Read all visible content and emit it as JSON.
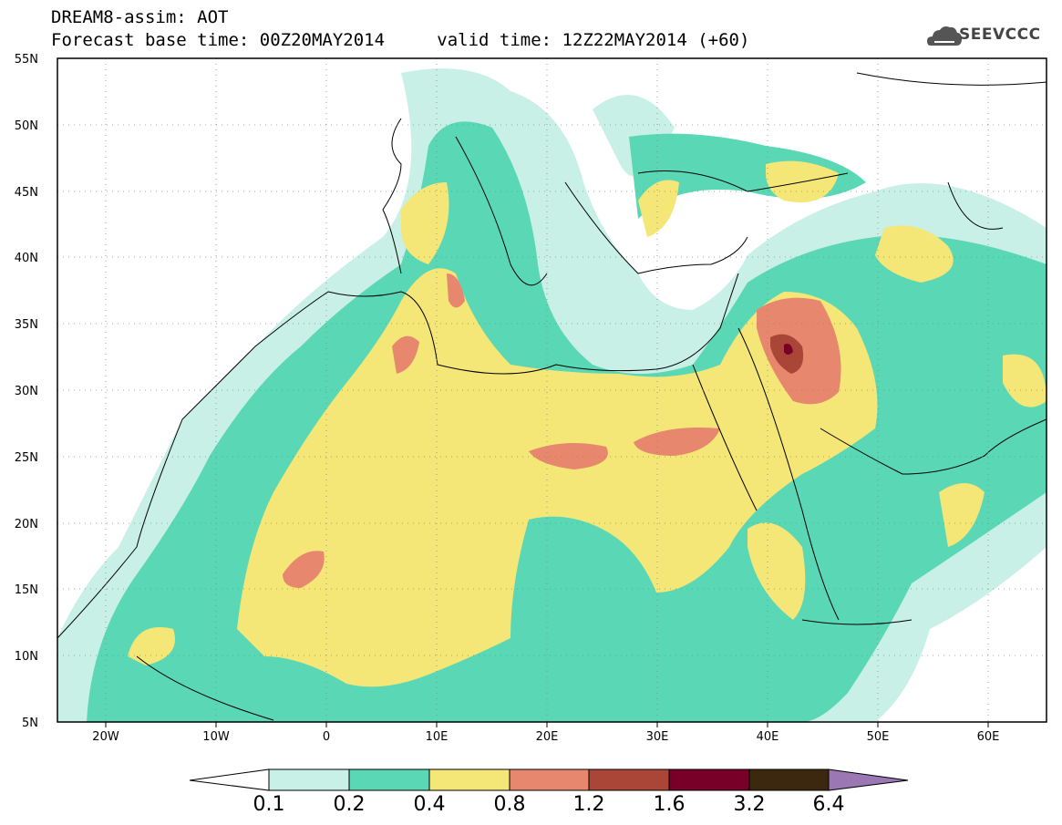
{
  "header": {
    "title": "DREAM8-assim: AOT",
    "base_time_label": "Forecast base time: 00Z20MAY2014",
    "valid_time_label": "valid time: 12Z22MAY2014 (+60)"
  },
  "logo": {
    "text": "SEEVCCC",
    "icon": "cloud-icon"
  },
  "map": {
    "lat_labels": [
      "55N",
      "50N",
      "45N",
      "40N",
      "35N",
      "30N",
      "25N",
      "20N",
      "15N",
      "10N",
      "5N"
    ],
    "lon_labels": [
      "20W",
      "10W",
      "0",
      "10E",
      "20E",
      "30E",
      "40E",
      "50E",
      "60E"
    ]
  },
  "colorbar": {
    "labels": [
      "0.1",
      "0.2",
      "0.4",
      "0.8",
      "1.2",
      "1.6",
      "3.2",
      "6.4"
    ],
    "colors": [
      "#ffffff",
      "#c8f0e6",
      "#5ad7b4",
      "#f5e678",
      "#e6876e",
      "#aa4637",
      "#780028",
      "#3c280f",
      "#9b78b4"
    ]
  }
}
